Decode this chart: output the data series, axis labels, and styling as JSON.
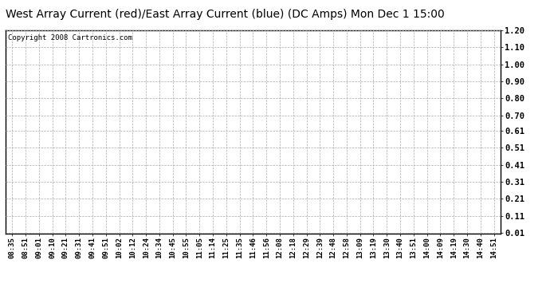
{
  "title": "West Array Current (red)/East Array Current (blue) (DC Amps) Mon Dec 1 15:00",
  "copyright_text": "Copyright 2008 Cartronics.com",
  "y_tick_labels": [
    "0.01",
    "0.11",
    "0.21",
    "0.31",
    "0.41",
    "0.51",
    "0.61",
    "0.70",
    "0.80",
    "0.90",
    "1.00",
    "1.10",
    "1.20"
  ],
  "y_tick_values": [
    0.01,
    0.11,
    0.21,
    0.31,
    0.41,
    0.51,
    0.61,
    0.7,
    0.8,
    0.9,
    1.0,
    1.1,
    1.2
  ],
  "ylim": [
    0.01,
    1.2
  ],
  "x_tick_labels": [
    "08:35",
    "08:51",
    "09:01",
    "09:10",
    "09:21",
    "09:31",
    "09:41",
    "09:51",
    "10:02",
    "10:12",
    "10:24",
    "10:34",
    "10:45",
    "10:55",
    "11:05",
    "11:14",
    "11:25",
    "11:35",
    "11:46",
    "11:56",
    "12:08",
    "12:18",
    "12:29",
    "12:39",
    "12:48",
    "12:58",
    "13:09",
    "13:19",
    "13:30",
    "13:40",
    "13:51",
    "14:00",
    "14:09",
    "14:19",
    "14:30",
    "14:40",
    "14:51"
  ],
  "background_color": "#ffffff",
  "grid_color": "#aaaaaa",
  "title_fontsize": 10,
  "tick_fontsize": 6.5,
  "copyright_fontsize": 6.5
}
